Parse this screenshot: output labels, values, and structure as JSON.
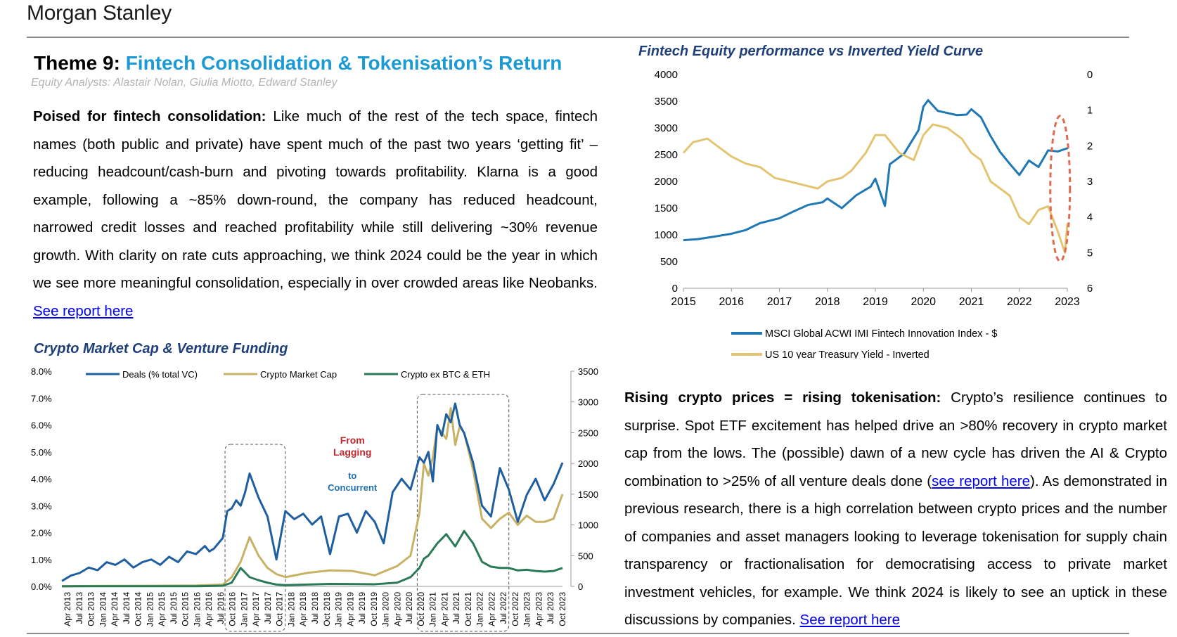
{
  "brand": "Morgan Stanley",
  "theme": {
    "prefix": "Theme 9: ",
    "title": "Fintech Consolidation & Tokenisation’s Return",
    "analysts": "Equity Analysts: Alastair Nolan, Giulia Miotto, Edward Stanley"
  },
  "para1": {
    "lead": "Poised for fintech consolidation:",
    "body": " Like much of the rest of the tech space, fintech names (both public and private) have spent much of the past two years ‘getting fit’ – reducing headcount/cash-burn and pivoting towards profitability. Klarna is a good example, following a ~85% down-round, the company has reduced headcount, narrowed credit losses and reached profitability while still delivering ~30% revenue growth. With clarity on rate cuts approaching, we think 2024 could be the year in which we see more meaningful consolidation, especially in over crowded areas like Neobanks. ",
    "link": "See report here"
  },
  "para2": {
    "lead": "Rising crypto prices = rising tokenisation:",
    "body1": " Crypto’s resilience continues to surprise. Spot ETF excitement has helped drive an >80% recovery in crypto market cap from the lows. The (possible) dawn of a new cycle has driven the AI & Crypto combination to >25% of all venture deals done (",
    "link1": "see report here",
    "body2": "). As demonstrated in previous research, there is a high correlation between crypto prices and the number of companies and asset managers looking to leverage tokenisation for supply chain transparency or fractionalisation for democratising access to private market investment vehicles, for example. We think 2024 is likely to see an uptick in these discussions by companies. ",
    "link2": "See report here"
  },
  "chart_data": [
    {
      "type": "line",
      "title": "Fintech Equity performance vs Inverted Yield Curve",
      "x_ticks": [
        "2015",
        "2016",
        "2017",
        "2018",
        "2019",
        "2020",
        "2021",
        "2022",
        "2023"
      ],
      "y_left_ticks": [
        "4000",
        "3500",
        "3000",
        "2500",
        "2000",
        "1500",
        "1000",
        "500",
        "0"
      ],
      "y_right_ticks": [
        "0",
        "1",
        "2",
        "3",
        "4",
        "5",
        "6"
      ],
      "ylim_left": [
        0,
        4000
      ],
      "ylim_right_inverted": [
        0,
        6
      ],
      "grid": false,
      "legend_position": "bottom",
      "series": [
        {
          "name": "MSCI Global ACWI IMI Fintech Innovation Index - $",
          "axis": "left",
          "color": "#1f77b4",
          "x": [
            2015.0,
            2015.3,
            2015.6,
            2016.0,
            2016.3,
            2016.6,
            2017.0,
            2017.3,
            2017.6,
            2017.9,
            2018.0,
            2018.3,
            2018.6,
            2018.9,
            2019.0,
            2019.2,
            2019.3,
            2019.6,
            2019.9,
            2020.0,
            2020.1,
            2020.2,
            2020.3,
            2020.5,
            2020.7,
            2020.9,
            2021.0,
            2021.2,
            2021.4,
            2021.6,
            2021.8,
            2022.0,
            2022.2,
            2022.4,
            2022.6,
            2022.8,
            2023.0
          ],
          "y": [
            900,
            920,
            960,
            1020,
            1090,
            1220,
            1310,
            1440,
            1560,
            1610,
            1680,
            1500,
            1740,
            1900,
            2050,
            1540,
            2320,
            2520,
            2960,
            3400,
            3520,
            3420,
            3320,
            3280,
            3240,
            3250,
            3350,
            3200,
            2850,
            2550,
            2330,
            2120,
            2390,
            2270,
            2580,
            2560,
            2620
          ]
        },
        {
          "name": "US 10 year Treasury Yield - Inverted",
          "axis": "right",
          "color": "#e3c571",
          "x": [
            2015.0,
            2015.2,
            2015.5,
            2015.8,
            2016.0,
            2016.3,
            2016.6,
            2016.9,
            2017.2,
            2017.5,
            2017.8,
            2018.0,
            2018.3,
            2018.5,
            2018.8,
            2019.0,
            2019.2,
            2019.5,
            2019.8,
            2020.0,
            2020.2,
            2020.5,
            2020.8,
            2021.0,
            2021.2,
            2021.4,
            2021.6,
            2021.8,
            2022.0,
            2022.2,
            2022.4,
            2022.6,
            2022.8,
            2022.95,
            2023.0
          ],
          "y": [
            2.2,
            1.9,
            1.8,
            2.1,
            2.3,
            2.5,
            2.6,
            2.9,
            3.0,
            3.1,
            3.2,
            3.0,
            2.9,
            2.7,
            2.2,
            1.7,
            1.7,
            2.2,
            2.4,
            1.7,
            1.4,
            1.5,
            1.8,
            2.2,
            2.4,
            3.0,
            3.2,
            3.4,
            4.0,
            4.2,
            3.8,
            3.7,
            4.4,
            5.0,
            4.2
          ]
        }
      ],
      "annotation": "dashed red ellipse around 2022-2023 on the right axis"
    },
    {
      "type": "line",
      "title": "Crypto Market Cap & Venture Funding",
      "x_ticks": [
        "Apr 2013",
        "Jul 2013",
        "Oct 2013",
        "Jan 2014",
        "Apr 2014",
        "Jul 2014",
        "Oct 2014",
        "Jan 2015",
        "Apr 2015",
        "Jul 2015",
        "Oct 2015",
        "Jan 2016",
        "Apr 2016",
        "Jul 2016",
        "Oct 2016",
        "Jan 2017",
        "Apr 2017",
        "Jul 2017",
        "Oct 2017",
        "Jan 2018",
        "Apr 2018",
        "Jul 2018",
        "Oct 2018",
        "Jan 2019",
        "Apr 2019",
        "Jul 2019",
        "Oct 2019",
        "Jan 2020",
        "Apr 2020",
        "Jul 2020",
        "Oct 2020",
        "Jan 2021",
        "Apr 2021",
        "Jul 2021",
        "Oct 2021",
        "Jan 2022",
        "Apr 2022",
        "Jul 2022",
        "Oct 2022",
        "Jan 2023",
        "Apr 2023",
        "Jul 2023",
        "Oct 2023"
      ],
      "y_left_ticks": [
        "8.0%",
        "7.0%",
        "6.0%",
        "5.0%",
        "4.0%",
        "3.0%",
        "2.0%",
        "1.0%",
        "0.0%"
      ],
      "y_right_ticks": [
        "3500",
        "3000",
        "2500",
        "2000",
        "1500",
        "1000",
        "500",
        "0"
      ],
      "ylim_left": [
        0,
        8
      ],
      "ylim_right": [
        0,
        3500
      ],
      "grid": false,
      "legend_position": "top",
      "annotations": [
        "From",
        "Lagging",
        "to",
        "Concurrent"
      ],
      "series": [
        {
          "name": "Deals (% total VC)",
          "axis": "left",
          "color": "#1f5fa0",
          "t": [
            0,
            2,
            4,
            6,
            8,
            10,
            12,
            14,
            16,
            18,
            20,
            22,
            24,
            26,
            28,
            30,
            32,
            33,
            34,
            35,
            36,
            37,
            38,
            39,
            40,
            41,
            42,
            44,
            46,
            48,
            50,
            52,
            54,
            56,
            58,
            60,
            62,
            64,
            66,
            68,
            70,
            72,
            74,
            76,
            78,
            80,
            81,
            82,
            83,
            84,
            85,
            86,
            87,
            88,
            89,
            90,
            92,
            94,
            96,
            98,
            100,
            102,
            104,
            106,
            108,
            110,
            112
          ],
          "y": [
            0.2,
            0.4,
            0.5,
            0.7,
            0.6,
            0.9,
            0.8,
            1.0,
            0.7,
            0.9,
            1.0,
            0.8,
            1.1,
            0.9,
            1.3,
            1.2,
            1.5,
            1.3,
            1.4,
            1.6,
            1.8,
            2.8,
            2.9,
            3.2,
            3.0,
            3.5,
            4.2,
            3.3,
            2.6,
            1.0,
            2.8,
            2.5,
            2.7,
            2.3,
            2.6,
            1.2,
            2.6,
            2.7,
            2.0,
            2.8,
            2.4,
            1.6,
            3.5,
            4.0,
            3.6,
            4.8,
            4.6,
            5.0,
            3.9,
            6.0,
            5.6,
            6.4,
            6.1,
            6.8,
            6.0,
            5.7,
            4.6,
            3.0,
            2.6,
            4.4,
            3.6,
            2.4,
            3.4,
            4.0,
            3.2,
            3.8,
            4.6
          ]
        },
        {
          "name": "Crypto Market Cap",
          "axis": "right",
          "color": "#c8b266",
          "t": [
            0,
            10,
            20,
            30,
            36,
            38,
            40,
            42,
            44,
            46,
            48,
            50,
            55,
            60,
            65,
            70,
            75,
            78,
            80,
            81,
            82,
            83,
            84,
            85,
            86,
            87,
            88,
            89,
            90,
            92,
            94,
            96,
            98,
            100,
            102,
            104,
            106,
            108,
            110,
            112
          ],
          "y": [
            5,
            8,
            10,
            15,
            30,
            150,
            400,
            800,
            500,
            300,
            200,
            150,
            220,
            260,
            250,
            180,
            330,
            500,
            1200,
            2000,
            1800,
            2100,
            2600,
            2500,
            2400,
            2900,
            2300,
            2600,
            2500,
            1900,
            1100,
            950,
            1100,
            1200,
            1000,
            1150,
            1050,
            1050,
            1100,
            1500
          ]
        },
        {
          "name": "Crypto ex BTC & ETH",
          "axis": "right",
          "color": "#2b7a57",
          "t": [
            0,
            30,
            36,
            38,
            40,
            42,
            44,
            46,
            48,
            50,
            60,
            70,
            75,
            78,
            80,
            81,
            82,
            84,
            86,
            88,
            90,
            92,
            94,
            96,
            98,
            100,
            102,
            104,
            106,
            108,
            110,
            112
          ],
          "y": [
            2,
            3,
            10,
            60,
            300,
            150,
            100,
            60,
            30,
            20,
            40,
            35,
            60,
            150,
            300,
            450,
            500,
            700,
            850,
            650,
            900,
            700,
            400,
            320,
            300,
            300,
            260,
            270,
            250,
            240,
            250,
            300
          ]
        }
      ]
    }
  ]
}
